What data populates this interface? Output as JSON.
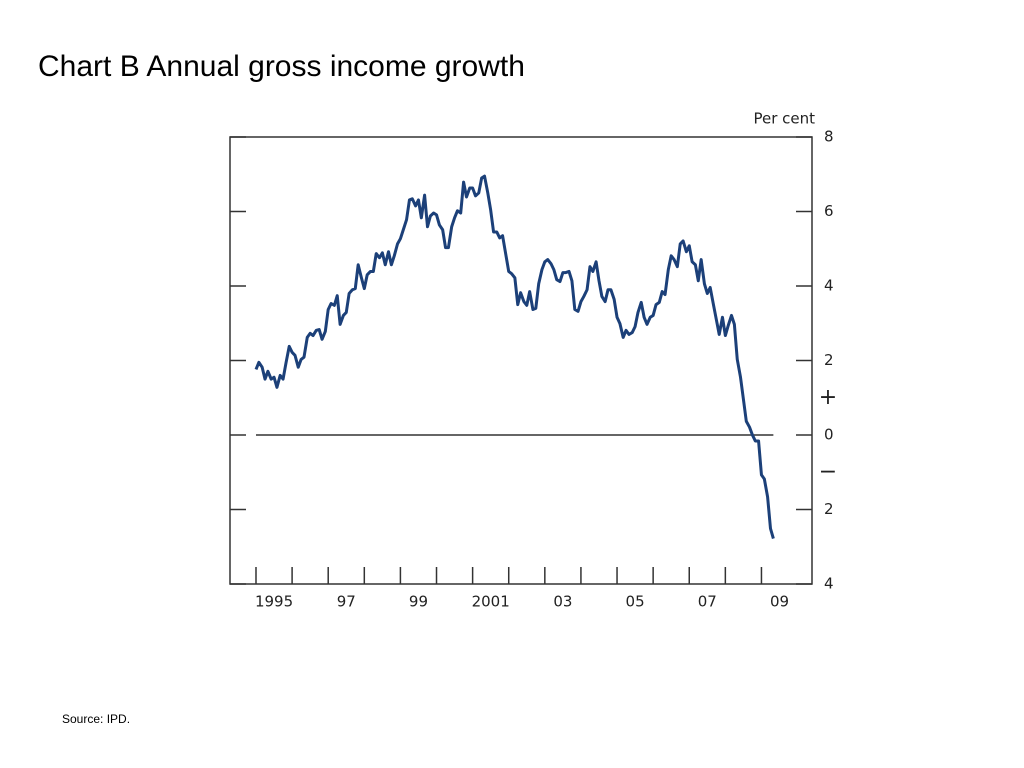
{
  "chart_data": {
    "type": "line",
    "title": "Chart B  Annual gross income growth",
    "y_axis_label": "Per cent",
    "plus_sign": "+",
    "minus_sign": "−",
    "source": "Source:  IPD.",
    "xlim": [
      1994.28,
      2010.4
    ],
    "xticks": [
      1995,
      1996,
      1997,
      1998,
      1999,
      2000,
      2001,
      2002,
      2003,
      2004,
      2005,
      2006,
      2007,
      2008,
      2009
    ],
    "xtick_labels": [
      {
        "value": 1995.5,
        "label": "1995"
      },
      {
        "value": 1997.5,
        "label": "97"
      },
      {
        "value": 1999.5,
        "label": "99"
      },
      {
        "value": 2001.5,
        "label": "2001"
      },
      {
        "value": 2003.5,
        "label": "03"
      },
      {
        "value": 2005.5,
        "label": "05"
      },
      {
        "value": 2007.5,
        "label": "07"
      },
      {
        "value": 2009.5,
        "label": "09"
      }
    ],
    "ylim": [
      -4,
      8
    ],
    "yticks": [
      {
        "value": -4,
        "label": "4"
      },
      {
        "value": -2,
        "label": "2"
      },
      0,
      2,
      4,
      6,
      8
    ],
    "sign_positions": [
      1,
      -1
    ],
    "zero_line": 0,
    "series": [
      {
        "name": "Annual gross income growth",
        "color": "#1c4079",
        "x": [
          1995,
          1995.08,
          1995.17,
          1995.25,
          1995.33,
          1995.42,
          1995.5,
          1995.58,
          1995.67,
          1995.75,
          1995.83,
          1995.92,
          1996,
          1996.08,
          1996.17,
          1996.25,
          1996.33,
          1996.42,
          1996.5,
          1996.58,
          1996.67,
          1996.75,
          1996.83,
          1996.92,
          1997,
          1997.08,
          1997.17,
          1997.25,
          1997.33,
          1997.42,
          1997.5,
          1997.58,
          1997.67,
          1997.75,
          1997.83,
          1997.92,
          1998,
          1998.08,
          1998.17,
          1998.25,
          1998.33,
          1998.42,
          1998.5,
          1998.58,
          1998.67,
          1998.75,
          1998.83,
          1998.92,
          1999,
          1999.08,
          1999.17,
          1999.25,
          1999.33,
          1999.42,
          1999.5,
          1999.58,
          1999.67,
          1999.75,
          1999.83,
          1999.92,
          2000,
          2000.08,
          2000.17,
          2000.25,
          2000.33,
          2000.42,
          2000.5,
          2000.58,
          2000.67,
          2000.75,
          2000.83,
          2000.92,
          2001,
          2001.08,
          2001.17,
          2001.25,
          2001.33,
          2001.42,
          2001.5,
          2001.58,
          2001.67,
          2001.75,
          2001.83,
          2001.92,
          2002,
          2002.08,
          2002.17,
          2002.25,
          2002.33,
          2002.42,
          2002.5,
          2002.58,
          2002.67,
          2002.75,
          2002.83,
          2002.92,
          2003,
          2003.08,
          2003.17,
          2003.25,
          2003.33,
          2003.42,
          2003.5,
          2003.58,
          2003.67,
          2003.75,
          2003.83,
          2003.92,
          2004,
          2004.08,
          2004.17,
          2004.25,
          2004.33,
          2004.42,
          2004.5,
          2004.58,
          2004.67,
          2004.75,
          2004.83,
          2004.92,
          2005,
          2005.08,
          2005.17,
          2005.25,
          2005.33,
          2005.42,
          2005.5,
          2005.58,
          2005.67,
          2005.75,
          2005.83,
          2005.92,
          2006,
          2006.08,
          2006.17,
          2006.25,
          2006.33,
          2006.42,
          2006.5,
          2006.58,
          2006.67,
          2006.75,
          2006.83,
          2006.92,
          2007,
          2007.08,
          2007.17,
          2007.25,
          2007.33,
          2007.42,
          2007.5,
          2007.58,
          2007.67,
          2007.75,
          2007.83,
          2007.92,
          2008,
          2008.08,
          2008.17,
          2008.25,
          2008.33,
          2008.42,
          2008.5,
          2008.58,
          2008.67,
          2008.75,
          2008.83,
          2008.92,
          2009,
          2009.08,
          2009.17,
          2009.25,
          2009.33
        ],
        "values": [
          1.76,
          1.95,
          1.82,
          1.5,
          1.71,
          1.5,
          1.55,
          1.28,
          1.6,
          1.5,
          1.93,
          2.38,
          2.22,
          2.14,
          1.82,
          2.03,
          2.09,
          2.62,
          2.73,
          2.67,
          2.81,
          2.83,
          2.57,
          2.78,
          3.37,
          3.53,
          3.48,
          3.74,
          2.97,
          3.21,
          3.29,
          3.8,
          3.9,
          3.93,
          4.57,
          4.22,
          3.93,
          4.3,
          4.39,
          4.39,
          4.87,
          4.76,
          4.89,
          4.57,
          4.92,
          4.57,
          4.81,
          5.13,
          5.27,
          5.51,
          5.78,
          6.31,
          6.34,
          6.15,
          6.31,
          5.83,
          6.44,
          5.59,
          5.88,
          5.96,
          5.91,
          5.64,
          5.51,
          5.03,
          5.03,
          5.59,
          5.83,
          6.02,
          5.96,
          6.79,
          6.39,
          6.63,
          6.63,
          6.42,
          6.5,
          6.9,
          6.95,
          6.5,
          6.04,
          5.45,
          5.45,
          5.29,
          5.35,
          4.84,
          4.39,
          4.33,
          4.22,
          3.5,
          3.82,
          3.58,
          3.48,
          3.85,
          3.37,
          3.4,
          4.06,
          4.44,
          4.65,
          4.71,
          4.6,
          4.44,
          4.17,
          4.12,
          4.36,
          4.36,
          4.39,
          4.14,
          3.37,
          3.32,
          3.58,
          3.72,
          3.9,
          4.52,
          4.39,
          4.65,
          4.14,
          3.72,
          3.58,
          3.9,
          3.9,
          3.64,
          3.16,
          2.99,
          2.62,
          2.81,
          2.7,
          2.75,
          2.91,
          3.29,
          3.56,
          3.16,
          2.97,
          3.16,
          3.21,
          3.5,
          3.56,
          3.85,
          3.77,
          4.44,
          4.81,
          4.71,
          4.52,
          5.13,
          5.21,
          4.92,
          5.08,
          4.65,
          4.57,
          4.14,
          4.71,
          4.06,
          3.8,
          3.96,
          3.5,
          3.1,
          2.7,
          3.16,
          2.67,
          2.94,
          3.21,
          2.97,
          2.03,
          1.55,
          0.96,
          0.37,
          0.21,
          0.0,
          -0.16,
          -0.16,
          -1.07,
          -1.18,
          -1.66,
          -2.51,
          -2.78
        ]
      }
    ]
  }
}
